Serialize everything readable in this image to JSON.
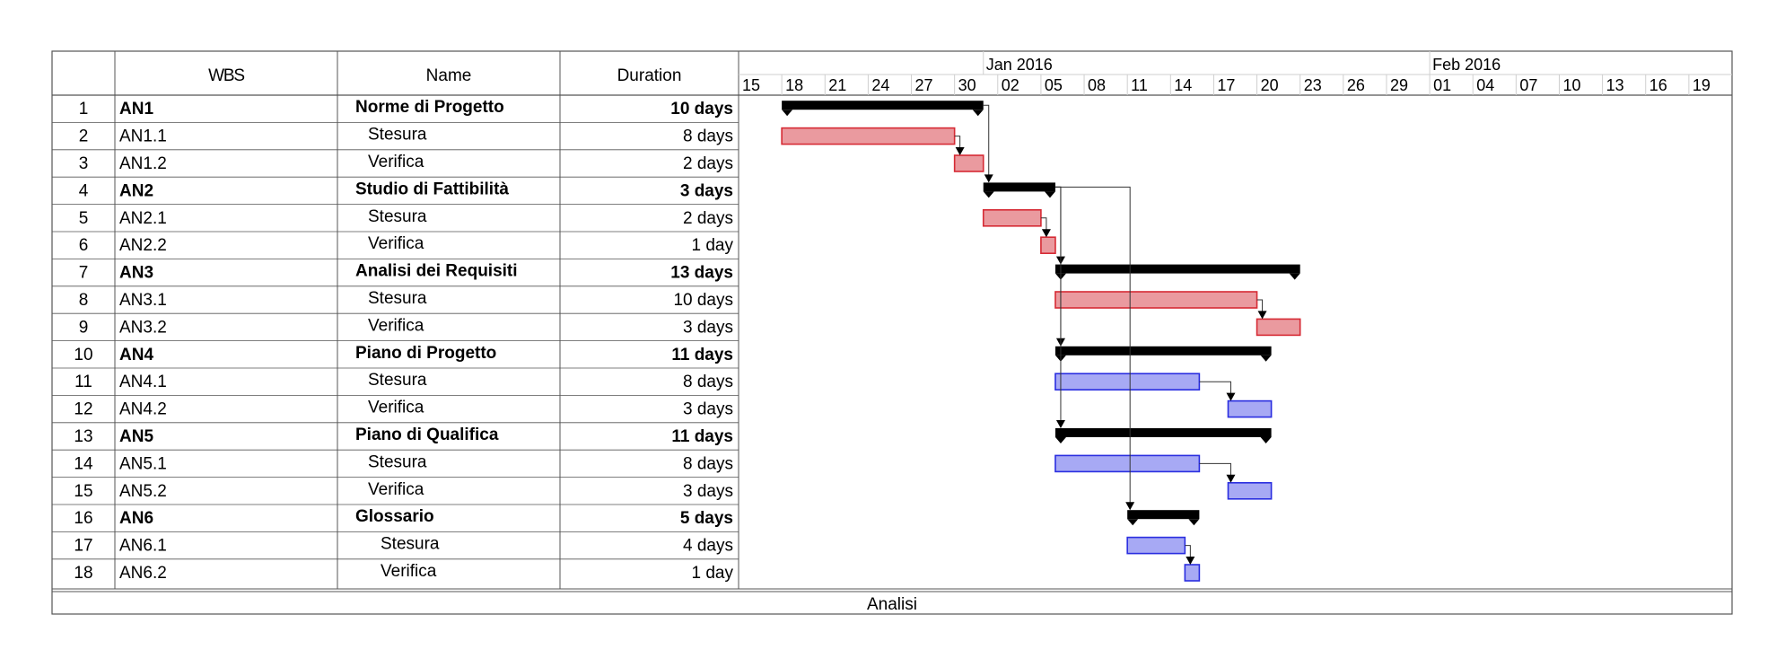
{
  "chart_data": {
    "type": "gantt",
    "columns": {
      "num": "",
      "wbs": "WBS",
      "name": "Name",
      "duration": "Duration"
    },
    "timeline": {
      "months": [
        {
          "label": "Jan 2016",
          "date": "2016-01-01"
        },
        {
          "label": "Feb 2016",
          "date": "2016-02-01"
        }
      ],
      "ticks": [
        {
          "label": "15",
          "date": "2015-12-15"
        },
        {
          "label": "18",
          "date": "2015-12-18"
        },
        {
          "label": "21",
          "date": "2015-12-21"
        },
        {
          "label": "24",
          "date": "2015-12-24"
        },
        {
          "label": "27",
          "date": "2015-12-27"
        },
        {
          "label": "30",
          "date": "2015-12-30"
        },
        {
          "label": "02",
          "date": "2016-01-02"
        },
        {
          "label": "05",
          "date": "2016-01-05"
        },
        {
          "label": "08",
          "date": "2016-01-08"
        },
        {
          "label": "11",
          "date": "2016-01-11"
        },
        {
          "label": "14",
          "date": "2016-01-14"
        },
        {
          "label": "17",
          "date": "2016-01-17"
        },
        {
          "label": "20",
          "date": "2016-01-20"
        },
        {
          "label": "23",
          "date": "2016-01-23"
        },
        {
          "label": "26",
          "date": "2016-01-26"
        },
        {
          "label": "29",
          "date": "2016-01-29"
        },
        {
          "label": "01",
          "date": "2016-02-01"
        },
        {
          "label": "04",
          "date": "2016-02-04"
        },
        {
          "label": "07",
          "date": "2016-02-07"
        },
        {
          "label": "10",
          "date": "2016-02-10"
        },
        {
          "label": "13",
          "date": "2016-02-13"
        },
        {
          "label": "16",
          "date": "2016-02-16"
        },
        {
          "label": "19",
          "date": "2016-02-19"
        }
      ],
      "range": [
        "2015-12-14",
        "2016-02-21"
      ]
    },
    "rows": [
      {
        "num": "1",
        "wbs": "AN1",
        "name": "Norme di Progetto",
        "duration": "10 days",
        "summary": true,
        "start": "2015-12-18",
        "end": "2015-12-31"
      },
      {
        "num": "2",
        "wbs": "AN1.1",
        "name": "Stesura",
        "duration": "8 days",
        "summary": false,
        "start": "2015-12-18",
        "end": "2015-12-29",
        "color": "red"
      },
      {
        "num": "3",
        "wbs": "AN1.2",
        "name": "Verifica",
        "duration": "2 days",
        "summary": false,
        "start": "2015-12-30",
        "end": "2015-12-31",
        "color": "red"
      },
      {
        "num": "4",
        "wbs": "AN2",
        "name": "Studio di Fattibilità",
        "duration": "3 days",
        "summary": true,
        "start": "2016-01-01",
        "end": "2016-01-05"
      },
      {
        "num": "5",
        "wbs": "AN2.1",
        "name": "Stesura",
        "duration": "2 days",
        "summary": false,
        "start": "2016-01-01",
        "end": "2016-01-04",
        "color": "red"
      },
      {
        "num": "6",
        "wbs": "AN2.2",
        "name": "Verifica",
        "duration": "1 day",
        "summary": false,
        "start": "2016-01-05",
        "end": "2016-01-05",
        "color": "red"
      },
      {
        "num": "7",
        "wbs": "AN3",
        "name": "Analisi dei Requisiti",
        "duration": "13 days",
        "summary": true,
        "start": "2016-01-06",
        "end": "2016-01-22"
      },
      {
        "num": "8",
        "wbs": "AN3.1",
        "name": "Stesura",
        "duration": "10 days",
        "summary": false,
        "start": "2016-01-06",
        "end": "2016-01-19",
        "color": "red"
      },
      {
        "num": "9",
        "wbs": "AN3.2",
        "name": "Verifica",
        "duration": "3 days",
        "summary": false,
        "start": "2016-01-20",
        "end": "2016-01-22",
        "color": "red"
      },
      {
        "num": "10",
        "wbs": "AN4",
        "name": "Piano di Progetto",
        "duration": "11 days",
        "summary": true,
        "start": "2016-01-06",
        "end": "2016-01-20"
      },
      {
        "num": "11",
        "wbs": "AN4.1",
        "name": "Stesura",
        "duration": "8 days",
        "summary": false,
        "start": "2016-01-06",
        "end": "2016-01-15",
        "color": "blue"
      },
      {
        "num": "12",
        "wbs": "AN4.2",
        "name": "Verifica",
        "duration": "3 days",
        "summary": false,
        "start": "2016-01-18",
        "end": "2016-01-20",
        "color": "blue"
      },
      {
        "num": "13",
        "wbs": "AN5",
        "name": "Piano di Qualifica",
        "duration": "11 days",
        "summary": true,
        "start": "2016-01-06",
        "end": "2016-01-20"
      },
      {
        "num": "14",
        "wbs": "AN5.1",
        "name": "Stesura",
        "duration": "8 days",
        "summary": false,
        "start": "2016-01-06",
        "end": "2016-01-15",
        "color": "blue"
      },
      {
        "num": "15",
        "wbs": "AN5.2",
        "name": "Verifica",
        "duration": "3 days",
        "summary": false,
        "start": "2016-01-18",
        "end": "2016-01-20",
        "color": "blue"
      },
      {
        "num": "16",
        "wbs": "AN6",
        "name": "Glossario",
        "duration": "5 days",
        "summary": true,
        "start": "2016-01-11",
        "end": "2016-01-15"
      },
      {
        "num": "17",
        "wbs": "AN6.1",
        "name": "Stesura",
        "duration": "4 days",
        "summary": false,
        "start": "2016-01-11",
        "end": "2016-01-14",
        "color": "blue"
      },
      {
        "num": "18",
        "wbs": "AN6.2",
        "name": "Verifica",
        "duration": "1 day",
        "summary": false,
        "start": "2016-01-15",
        "end": "2016-01-15",
        "color": "blue"
      }
    ],
    "dependencies": [
      {
        "from": "2",
        "to": "3",
        "type": "finish-start"
      },
      {
        "from": "5",
        "to": "6",
        "type": "finish-start"
      },
      {
        "from": "8",
        "to": "9",
        "type": "finish-start"
      },
      {
        "from": "11",
        "to": "12",
        "type": "finish-start"
      },
      {
        "from": "14",
        "to": "15",
        "type": "finish-start"
      },
      {
        "from": "17",
        "to": "18",
        "type": "finish-start"
      },
      {
        "from": "1",
        "to": "4",
        "type": "finish-start"
      },
      {
        "from": "4",
        "to": "7",
        "type": "finish-start"
      },
      {
        "from": "4",
        "to": "10",
        "type": "finish-start"
      },
      {
        "from": "4",
        "to": "13",
        "type": "finish-start"
      },
      {
        "from": "4",
        "to": "16",
        "type": "finish-start"
      }
    ],
    "footer": "Analisi"
  },
  "colors": {
    "red_fill": "#ea9a9f",
    "red_stroke": "#d62a34",
    "blue_fill": "#a7a9f4",
    "blue_stroke": "#2a2ee0",
    "summary": "#000000",
    "grid": "#555555",
    "subgrid": "#cfcfcf",
    "dependency": "#333333"
  }
}
